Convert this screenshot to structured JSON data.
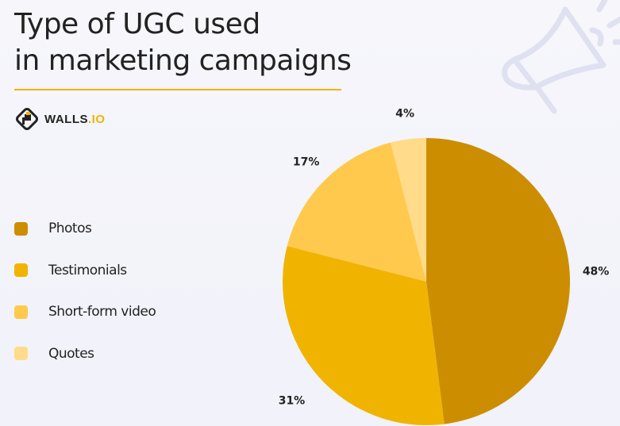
{
  "title_lines": [
    "Type of UGC used",
    "in marketing campaigns"
  ],
  "logo": {
    "main": "WALLS",
    "suffix": ".IO"
  },
  "colors": {
    "accent": "#f0b400",
    "text": "#222222"
  },
  "icons": {
    "decor": "megaphone-icon",
    "logo": "walls-io-logo-icon"
  },
  "chart_data": {
    "type": "pie",
    "title": "Type of UGC used in marketing campaigns",
    "start": "top",
    "direction": "clockwise",
    "legend_placement": "left",
    "slices": [
      {
        "label": "Photos",
        "value": 48,
        "display": "48%",
        "color": "#cc8e00"
      },
      {
        "label": "Testimonials",
        "value": 31,
        "display": "31%",
        "color": "#f0b400"
      },
      {
        "label": "Short-form video",
        "value": 17,
        "display": "17%",
        "color": "#ffc94d"
      },
      {
        "label": "Quotes",
        "value": 4,
        "display": "4%",
        "color": "#ffdb8a"
      }
    ]
  }
}
